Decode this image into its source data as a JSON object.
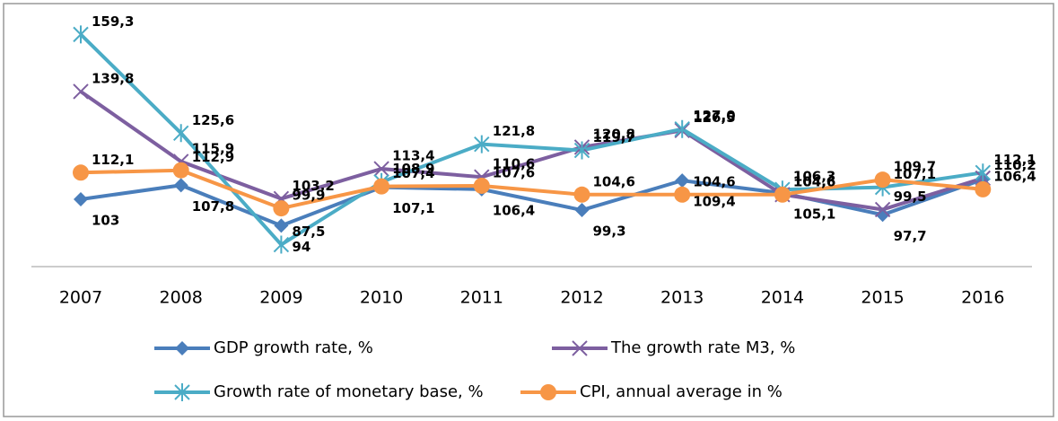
{
  "chart_data": {
    "type": "line",
    "categories": [
      "2007",
      "2008",
      "2009",
      "2010",
      "2011",
      "2012",
      "2013",
      "2014",
      "2015",
      "2016"
    ],
    "ylim": [
      80,
      168
    ],
    "series": [
      {
        "name": "GDP growth rate, %",
        "color": "#4a7ebb",
        "marker": "diamond",
        "values": [
          103,
          107.8,
          94,
          107.1,
          106.4,
          99.3,
          109.4,
          105.1,
          97.7,
          109.8
        ],
        "value_labels": [
          "103",
          "107,8",
          "94",
          "107,1",
          "106,4",
          "99,3",
          "109,4",
          "105,1",
          "97,7",
          null
        ]
      },
      {
        "name": "The growth rate M3, %",
        "color": "#7d5fa0",
        "marker": "x",
        "values": [
          139.8,
          115.9,
          103.2,
          113.4,
          110.6,
          120.8,
          126.5,
          104.6,
          99.5,
          110.2
        ],
        "value_labels": [
          "139,8",
          "115,9",
          "103,2",
          "113,4",
          "110,6",
          "120,8",
          "126,5",
          "104,6",
          "99,5",
          "110,2"
        ]
      },
      {
        "name": "Growth rate of monetary base, %",
        "color": "#4bacc6",
        "marker": "star",
        "values": [
          159.3,
          125.6,
          87.5,
          108.9,
          121.8,
          119.7,
          127.0,
          106.3,
          107.1,
          112.1
        ],
        "value_labels": [
          "159,3",
          "125,6",
          "87,5",
          "108,9",
          "121,8",
          "119,7",
          "127,0",
          "106,3",
          "107,1",
          "112,1"
        ]
      },
      {
        "name": "CPI, annual average in %",
        "color": "#f79646",
        "marker": "circle",
        "values": [
          112.1,
          112.9,
          99.9,
          107.4,
          107.6,
          104.6,
          104.6,
          104.6,
          109.7,
          106.4
        ],
        "value_labels": [
          "112,1",
          "112,9",
          "99,9",
          "107,4",
          "107,6",
          "104,6",
          "104,6",
          "104,6",
          "109,7",
          "106,4"
        ]
      }
    ]
  }
}
